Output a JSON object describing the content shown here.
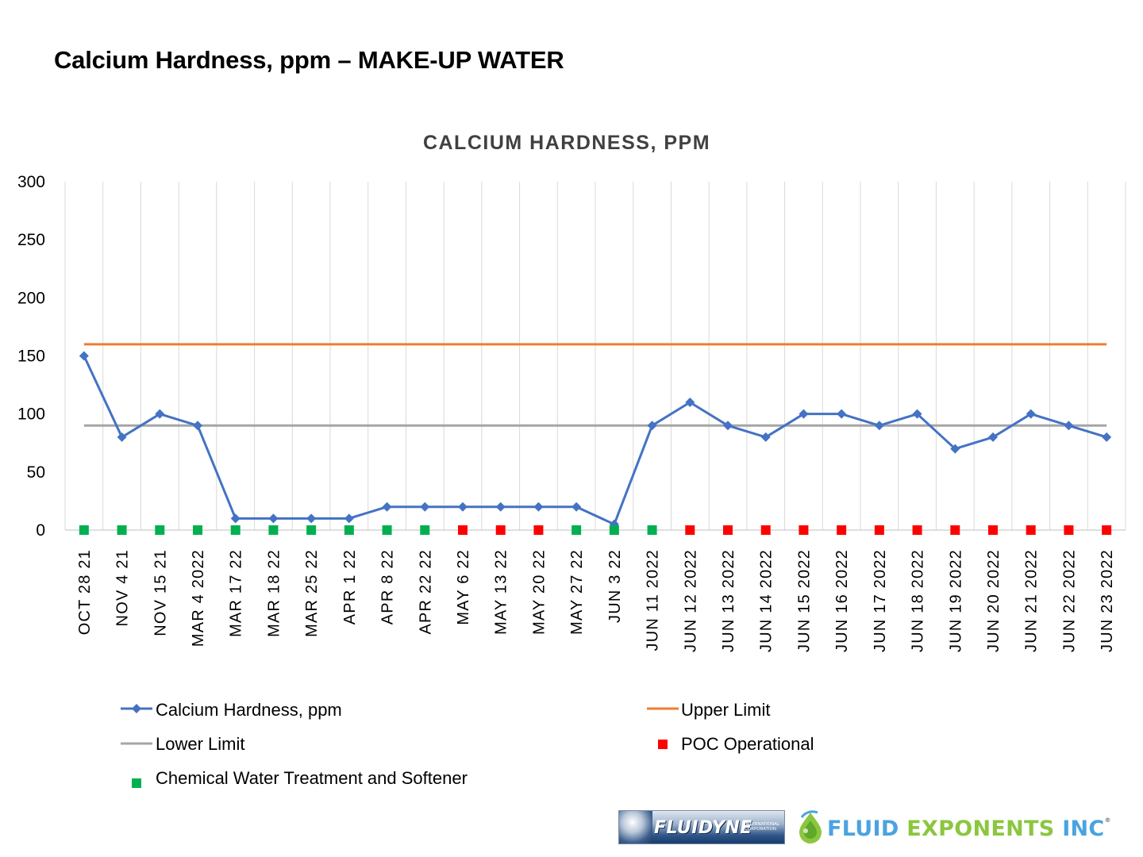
{
  "slide_title": "Calcium Hardness, ppm – MAKE-UP WATER",
  "logos": {
    "fluidyne": {
      "name": "FLUIDYNE",
      "sub": "INTERNATIONAL CORPORATION"
    },
    "fluid_exponents": {
      "part1": "FLUID ",
      "part2": "EXPONENTS ",
      "part3": "INC",
      "reg": "®"
    }
  },
  "colors": {
    "series": "#4472c4",
    "upper": "#ed7d31",
    "lower": "#a5a5a5",
    "poc": "#ff0000",
    "chem": "#00b050",
    "grid": "#d9d9d9"
  },
  "chart_data": {
    "type": "line",
    "title": "CALCIUM  HARDNESS,  PPM",
    "ylim": [
      0,
      300
    ],
    "yticks": [
      0,
      50,
      100,
      150,
      200,
      250,
      300
    ],
    "grid": "vertical",
    "legend_position": "bottom",
    "categories": [
      "OCT  28  21",
      "NOV  4  21",
      "NOV  15  21",
      "MAR  4 2022",
      "MAR  17  22",
      "MAR  18  22",
      "MAR  25  22",
      "APR  1  22",
      "APR  8  22",
      "APR  22  22",
      "MAY  6  22",
      "MAY  13  22",
      "MAY  20  22",
      "MAY  27  22",
      "JUN  3  22",
      "JUN  11  2022",
      "JUN  12  2022",
      "JUN  13  2022",
      "JUN  14  2022",
      "JUN  15  2022",
      "JUN  16  2022",
      "JUN  17  2022",
      "JUN  18  2022",
      "JUN  19  2022",
      "JUN  20  2022",
      "JUN  21  2022",
      "JUN  22  2022",
      "JUN  23  2022"
    ],
    "series": [
      {
        "name": "Calcium Hardness, ppm",
        "marker": "diamond",
        "values": [
          150,
          80,
          100,
          90,
          10,
          10,
          10,
          10,
          20,
          20,
          20,
          20,
          20,
          20,
          5,
          90,
          110,
          90,
          80,
          100,
          100,
          90,
          100,
          70,
          80,
          100,
          90,
          80
        ]
      },
      {
        "name": "Upper Limit",
        "values": [
          160,
          160,
          160,
          160,
          160,
          160,
          160,
          160,
          160,
          160,
          160,
          160,
          160,
          160,
          160,
          160,
          160,
          160,
          160,
          160,
          160,
          160,
          160,
          160,
          160,
          160,
          160,
          160
        ]
      },
      {
        "name": "Lower Limit",
        "values": [
          90,
          90,
          90,
          90,
          90,
          90,
          90,
          90,
          90,
          90,
          90,
          90,
          90,
          90,
          90,
          90,
          90,
          90,
          90,
          90,
          90,
          90,
          90,
          90,
          90,
          90,
          90,
          90
        ]
      }
    ],
    "status_markers": {
      "value": 0,
      "legend": {
        "poc": "POC Operational",
        "chem": "Chemical Water Treatment and Softener"
      },
      "status": [
        "chem",
        "chem",
        "chem",
        "chem",
        "chem",
        "chem",
        "chem",
        "chem",
        "chem",
        "chem",
        "poc",
        "poc",
        "poc",
        "chem",
        "chem",
        "chem",
        "poc",
        "poc",
        "poc",
        "poc",
        "poc",
        "poc",
        "poc",
        "poc",
        "poc",
        "poc",
        "poc",
        "poc"
      ]
    }
  }
}
